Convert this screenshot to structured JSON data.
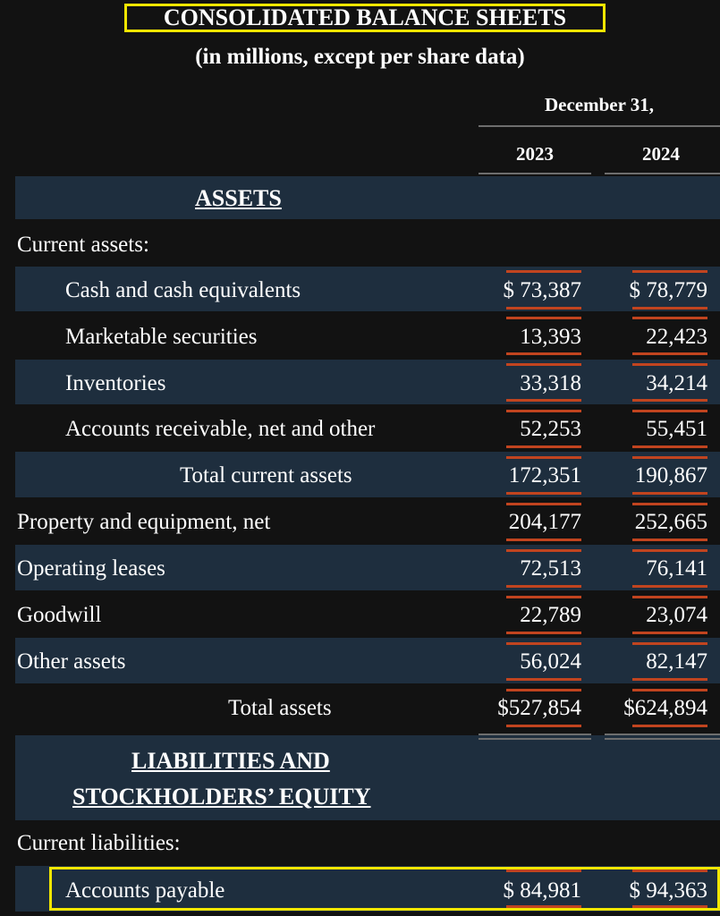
{
  "header": {
    "title": "CONSOLIDATED BALANCE SHEETS",
    "subtitle": "(in millions, except per share data)",
    "date_label": "December 31,",
    "years": [
      "2023",
      "2024"
    ]
  },
  "sections": {
    "assets": "ASSETS",
    "current_assets": "Current assets:",
    "liabilities_line1": "LIABILITIES AND",
    "liabilities_line2": "STOCKHOLDERS’ EQUITY",
    "current_liabilities": "Current liabilities:"
  },
  "rows": [
    {
      "label": "Cash and cash equivalents",
      "v2023": "$ 73,387",
      "v2024": "$ 78,779"
    },
    {
      "label": "Marketable securities",
      "v2023": "13,393",
      "v2024": "22,423"
    },
    {
      "label": "Inventories",
      "v2023": "33,318",
      "v2024": "34,214"
    },
    {
      "label": "Accounts receivable, net and other",
      "v2023": "52,253",
      "v2024": "55,451"
    },
    {
      "label": "Total current assets",
      "v2023": "172,351",
      "v2024": "190,867"
    },
    {
      "label": "Property and equipment, net",
      "v2023": "204,177",
      "v2024": "252,665"
    },
    {
      "label": "Operating leases",
      "v2023": "72,513",
      "v2024": "76,141"
    },
    {
      "label": "Goodwill",
      "v2023": "22,789",
      "v2024": "23,074"
    },
    {
      "label": "Other assets",
      "v2023": "56,024",
      "v2024": "82,147"
    },
    {
      "label": "Total assets",
      "v2023": "$527,854",
      "v2024": "$624,894"
    },
    {
      "label": "Accounts payable",
      "v2023": "$ 84,981",
      "v2024": "$ 94,363"
    }
  ],
  "colors": {
    "background": "#121212",
    "row_band": "#1e2e3e",
    "highlight_box": "#f2e600",
    "underline_accent": "#c1441f"
  }
}
